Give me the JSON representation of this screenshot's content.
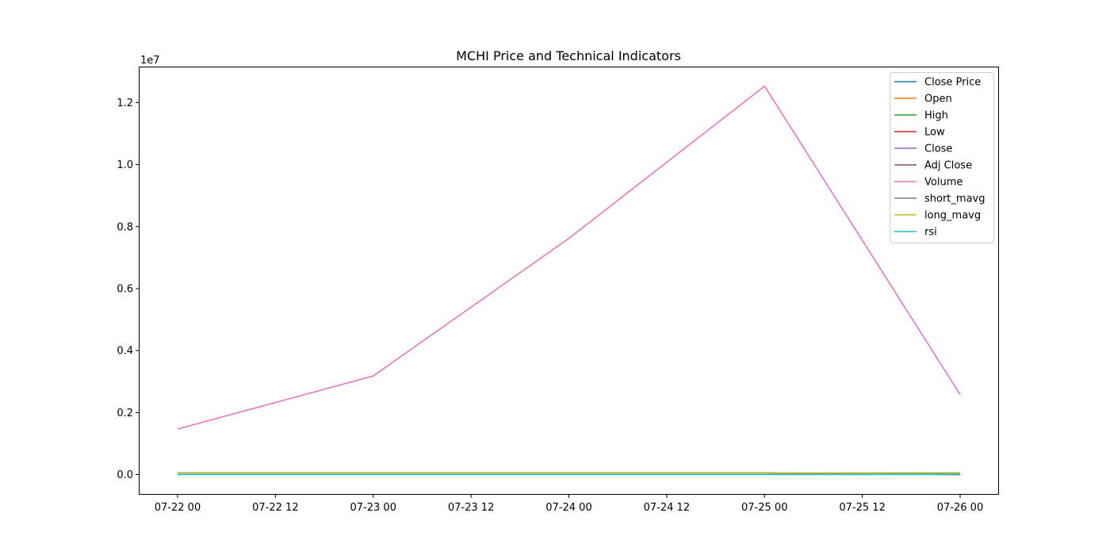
{
  "chart_data": {
    "type": "line",
    "title": "MCHI Price and Technical Indicators",
    "xlabel": "",
    "ylabel": "",
    "y_multiplier_label": "1e7",
    "x": [
      "07-22 00",
      "07-23 00",
      "07-24 00",
      "07-25 00",
      "07-26 00"
    ],
    "x_ticks": [
      "07-22 00",
      "07-22 12",
      "07-23 00",
      "07-23 12",
      "07-24 00",
      "07-24 12",
      "07-25 00",
      "07-25 12",
      "07-26 00"
    ],
    "y_ticks": [
      "0.0",
      "0.2",
      "0.4",
      "0.6",
      "0.8",
      "1.0",
      "1.2"
    ],
    "ylim": [
      -0.0626,
      1.3136
    ],
    "grid": false,
    "legend_position": "upper right",
    "series": [
      {
        "name": "Close Price",
        "color": "#1f77b4",
        "values": [
          0.0047,
          0.0047,
          0.0047,
          0.0047,
          0.0
        ]
      },
      {
        "name": "Open",
        "color": "#ff7f0e",
        "values": [
          0.0047,
          0.0047,
          0.0047,
          0.0047,
          0.0047
        ]
      },
      {
        "name": "High",
        "color": "#2ca02c",
        "values": [
          0.0047,
          0.0047,
          0.0047,
          0.0047,
          0.0047
        ]
      },
      {
        "name": "Low",
        "color": "#d62728",
        "values": [
          0.0047,
          0.0047,
          0.0047,
          0.0047,
          0.0
        ]
      },
      {
        "name": "Close",
        "color": "#9467bd",
        "values": [
          0.0047,
          0.0047,
          0.0047,
          0.0047,
          0.0
        ]
      },
      {
        "name": "Adj Close",
        "color": "#8c564b",
        "values": [
          0.0047,
          0.0047,
          0.0047,
          0.0047,
          0.0
        ]
      },
      {
        "name": "Volume",
        "color": "#e377c2",
        "values": [
          0.147,
          0.318,
          0.762,
          1.253,
          0.258
        ]
      },
      {
        "name": "short_mavg",
        "color": "#7f7f7f",
        "values": [
          0.0047,
          0.0047,
          0.0047,
          0.0047,
          0.0025
        ]
      },
      {
        "name": "long_mavg",
        "color": "#bcbd22",
        "values": [
          0.0047,
          0.0047,
          0.0047,
          0.0047,
          0.0035
        ]
      },
      {
        "name": "rsi",
        "color": "#17becf",
        "values": [
          0.0,
          0.0,
          0.0,
          0.0,
          0.0
        ]
      }
    ]
  }
}
